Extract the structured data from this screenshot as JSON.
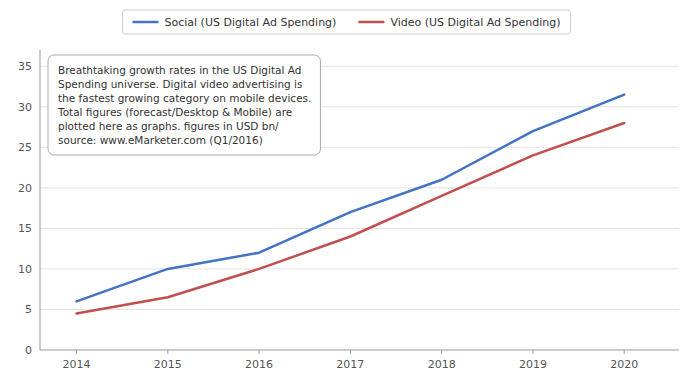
{
  "chart_data": {
    "type": "line",
    "x": [
      2014,
      2015,
      2016,
      2017,
      2018,
      2019,
      2020
    ],
    "series": [
      {
        "name": "Social (US Digital Ad Spending)",
        "color": "#4472C4",
        "values": [
          6.0,
          10.0,
          12.0,
          17.0,
          21.0,
          27.0,
          31.5
        ]
      },
      {
        "name": "Video (US Digital Ad Spending)",
        "color": "#C0504D",
        "values": [
          4.5,
          6.5,
          10.0,
          14.0,
          19.0,
          24.0,
          28.0
        ]
      }
    ],
    "xlim": [
      2013.6,
      2020.6
    ],
    "xticks": [
      2014,
      2015,
      2016,
      2017,
      2018,
      2019,
      2020
    ],
    "ylim": [
      0,
      37
    ],
    "yticks": [
      0,
      5,
      10,
      15,
      20,
      25,
      30,
      35
    ],
    "grid": true,
    "legend": "top",
    "annotations": [
      "Breathtaking growth rates in the US Digital Ad\nSpending universe. Digital video advertising is\nthe fastest growing category on mobile devices.\nTotal figures (forecast/Desktop & Mobile) are\nplotted here as graphs. figures in USD bn/\nsource: www.eMarketer.com (Q1/2016)"
    ]
  }
}
